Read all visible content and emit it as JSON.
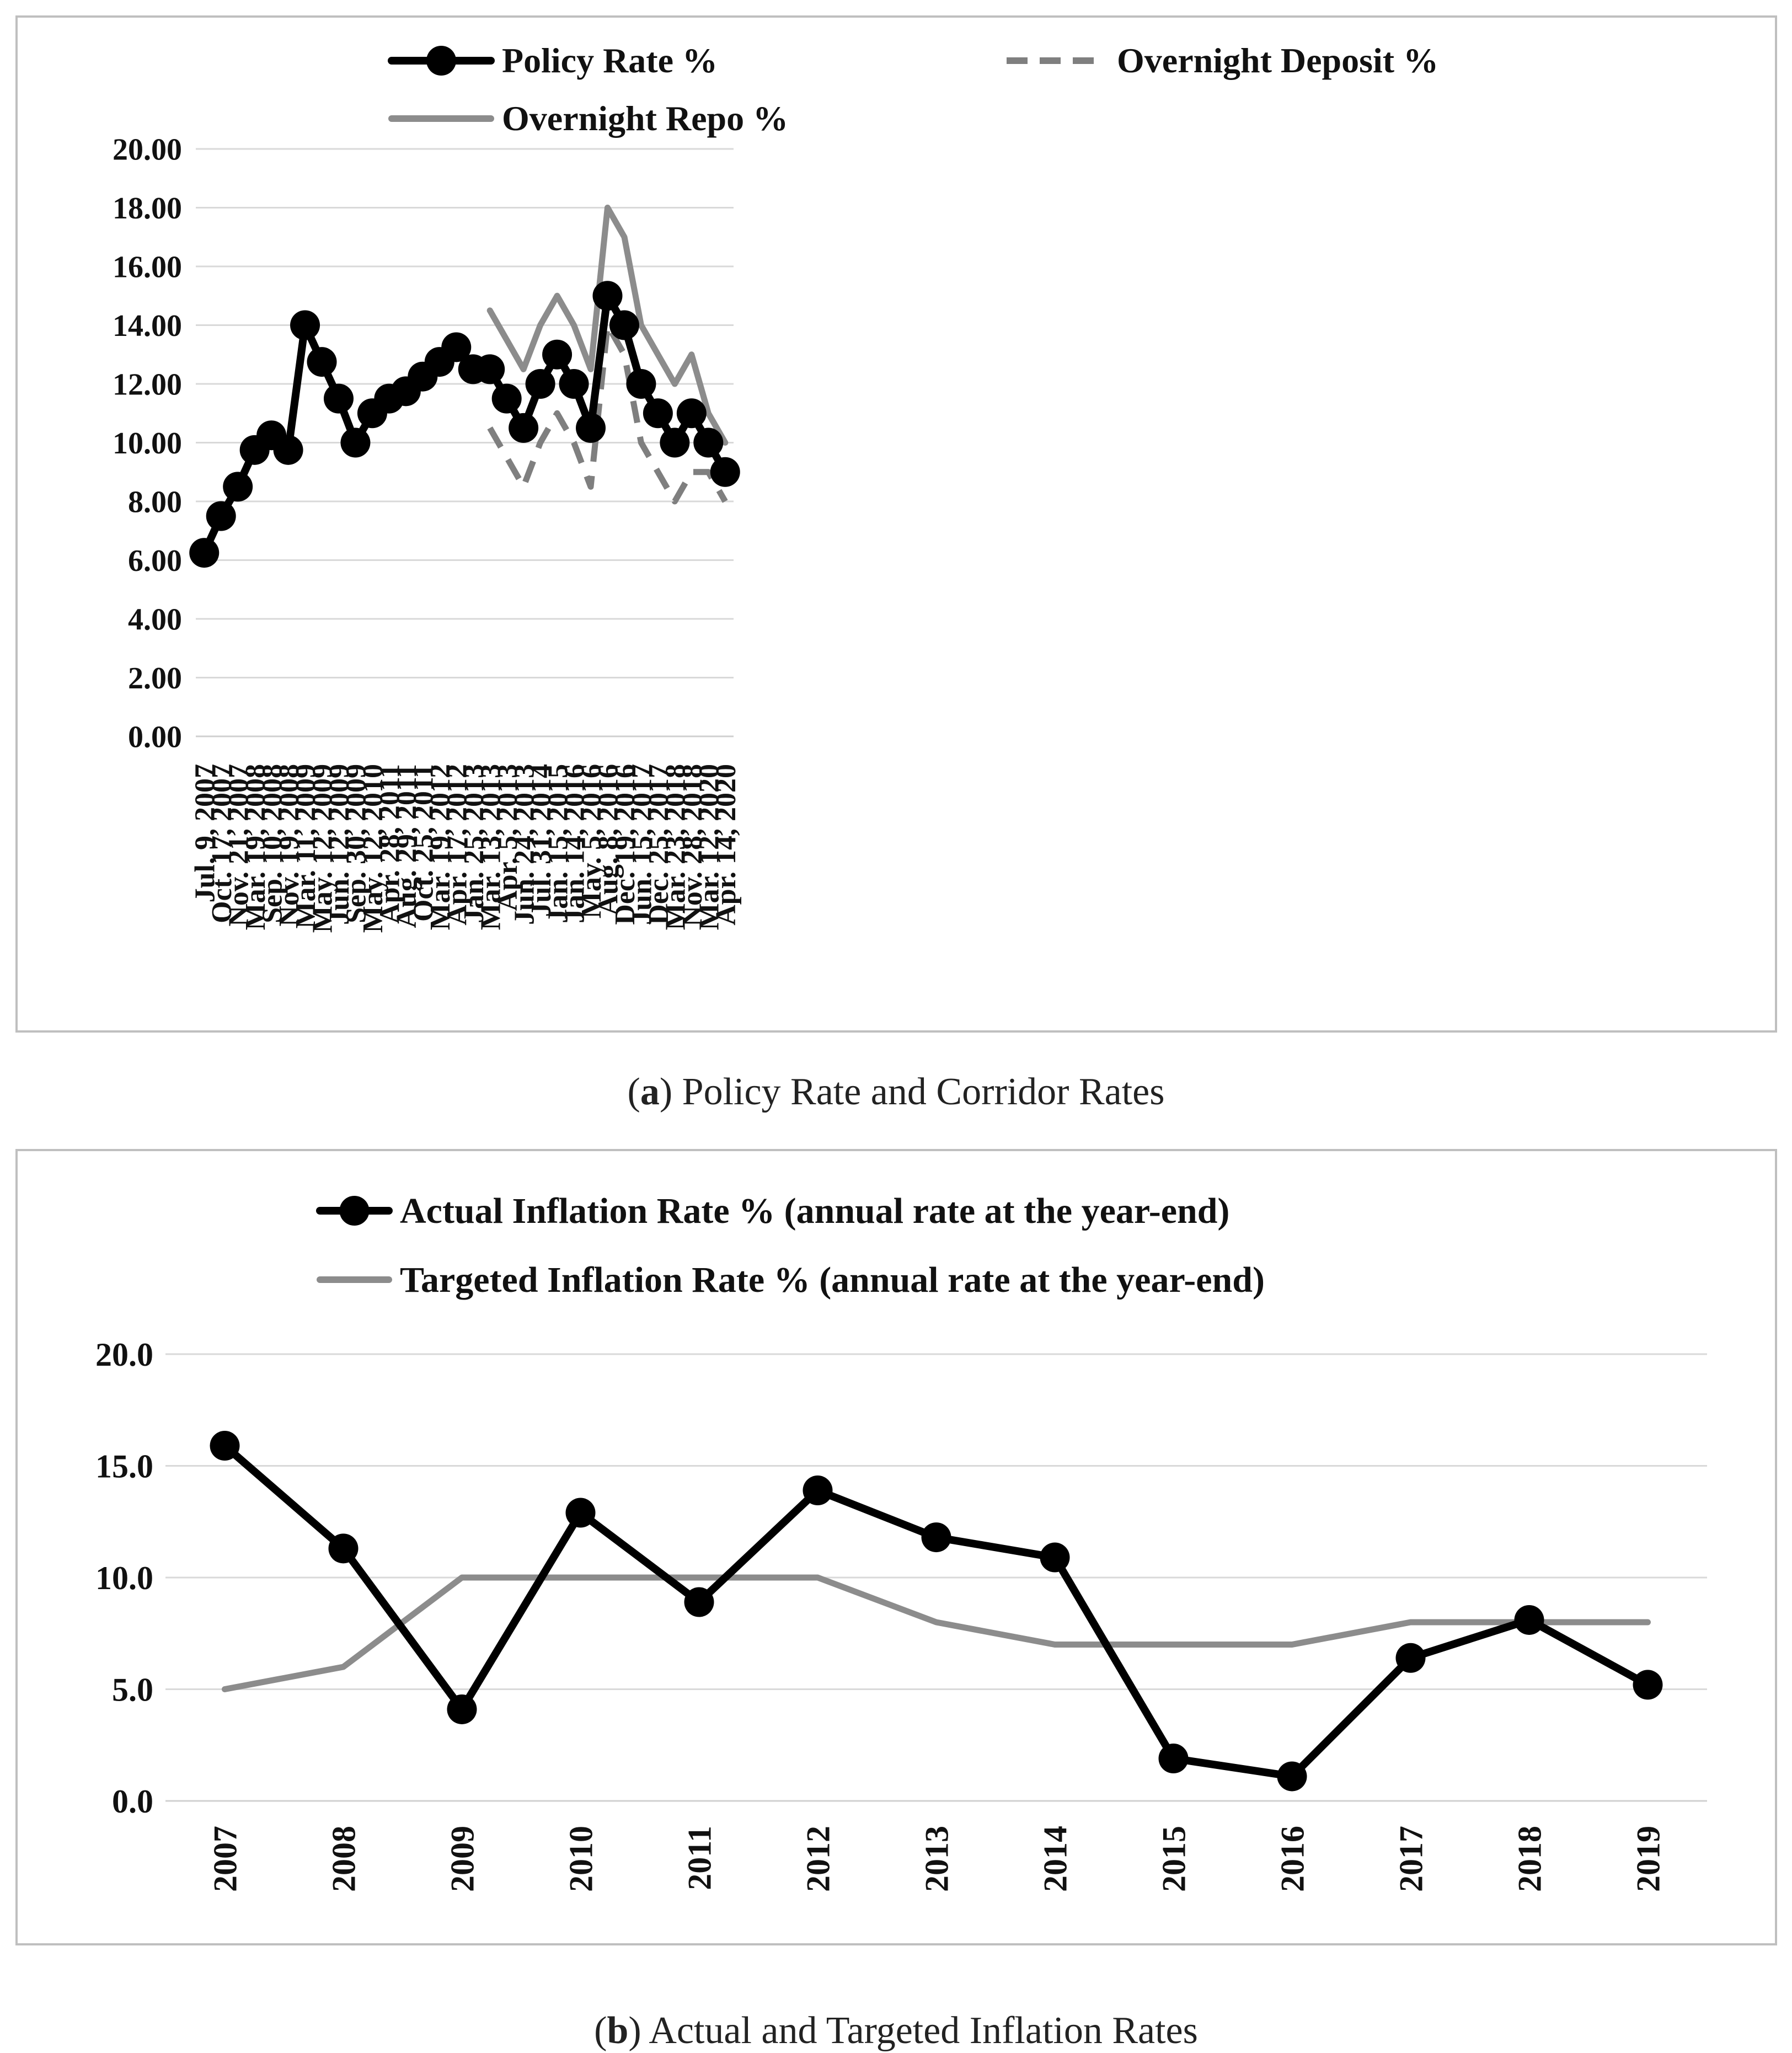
{
  "colors": {
    "policy": "#000000",
    "deposit": "#7f7f7f",
    "repo": "#8c8c8c",
    "actual": "#000000",
    "target": "#8c8c8c",
    "grid": "#d9d9d9",
    "frame": "#bfbfbf"
  },
  "chart_data": [
    {
      "type": "line",
      "caption_label": "a",
      "caption_text": ") Policy Rate and Corridor Rates",
      "caption_open": "(",
      "categories": [
        "Jul. 9, 2007",
        "Oct. 17, 2007",
        "Nov. 21, 2007",
        "Mar. 19, 2008",
        "Sep. 10, 2008",
        "Nov. 19, 2008",
        "Mar. 11, 2009",
        "May. 12, 2009",
        "Jun. 12, 2009",
        "Sep. 30, 2009",
        "May. 12, 2010",
        "Apr. 28, 2011",
        "Aug. 29, 2011",
        "Oct. 25, 2011",
        "Mar. 19, 2012",
        "Apr. 17, 2012",
        "Jan. 25, 2013",
        "Mar. 13, 2013",
        "Apr. 5, 2013",
        "Jun. 24, 2013",
        "Jul. 31, 2014",
        "Jan. 15, 2015",
        "Jan. 14, 2016",
        "May. 5, 2016",
        "Aug. 8, 2016",
        "Dec. 19, 2016",
        "Jun. 15, 2017",
        "Dec. 25, 2017",
        "Mar. 23, 2018",
        "Nov. 28, 2018",
        "Mar. 12, 2020",
        "Apr. 14, 2020"
      ],
      "yticks": [
        "0.00",
        "2.00",
        "4.00",
        "6.00",
        "8.00",
        "10.00",
        "12.00",
        "14.00",
        "16.00",
        "18.00",
        "20.00"
      ],
      "ylim": [
        0,
        20
      ],
      "grid": true,
      "legend_position": "top",
      "series": [
        {
          "name": "Policy Rate %",
          "style": "solid-markers",
          "values": [
            6.25,
            7.5,
            8.5,
            9.75,
            10.25,
            9.75,
            14,
            12.75,
            11.5,
            10,
            11,
            11.5,
            11.75,
            12.25,
            12.75,
            13.25,
            12.5,
            12.5,
            11.5,
            10.5,
            12,
            13,
            12,
            10.5,
            15,
            14,
            12,
            11,
            10,
            11,
            10,
            9
          ]
        },
        {
          "name": "Overnight Deposit %",
          "style": "dashed",
          "values": [
            null,
            null,
            null,
            null,
            null,
            null,
            null,
            null,
            null,
            null,
            null,
            null,
            null,
            null,
            null,
            null,
            null,
            10.5,
            9.5,
            8.5,
            10,
            11,
            10,
            8.5,
            14,
            13,
            10,
            9,
            8,
            9,
            9,
            8
          ]
        },
        {
          "name": "Overnight Repo %",
          "style": "solid",
          "values": [
            null,
            null,
            null,
            null,
            null,
            null,
            null,
            null,
            null,
            null,
            null,
            null,
            null,
            null,
            null,
            null,
            null,
            14.5,
            13.5,
            12.5,
            14,
            15,
            14,
            12.5,
            18,
            17,
            14,
            13,
            12,
            13,
            11,
            10
          ]
        }
      ]
    },
    {
      "type": "line",
      "caption_label": "b",
      "caption_text": ") Actual and Targeted Inflation Rates",
      "caption_open": "(",
      "categories": [
        "2007",
        "2008",
        "2009",
        "2010",
        "2011",
        "2012",
        "2013",
        "2014",
        "2015",
        "2016",
        "2017",
        "2018",
        "2019"
      ],
      "yticks": [
        "0.0",
        "5.0",
        "10.0",
        "15.0",
        "20.0"
      ],
      "ylim": [
        0,
        20
      ],
      "grid": true,
      "legend_position": "top",
      "series": [
        {
          "name": "Actual Inflation Rate % (annual rate at the year-end)",
          "style": "solid-markers",
          "values": [
            15.9,
            11.3,
            4.1,
            12.9,
            8.9,
            13.9,
            11.8,
            10.9,
            1.9,
            1.1,
            6.4,
            8.1,
            5.2
          ]
        },
        {
          "name": "Targeted Inflation Rate %  (annual rate at the year-end)",
          "style": "solid",
          "values": [
            5,
            6,
            10,
            10,
            10,
            10,
            8,
            7,
            7,
            7,
            8,
            8,
            8
          ]
        }
      ]
    }
  ]
}
